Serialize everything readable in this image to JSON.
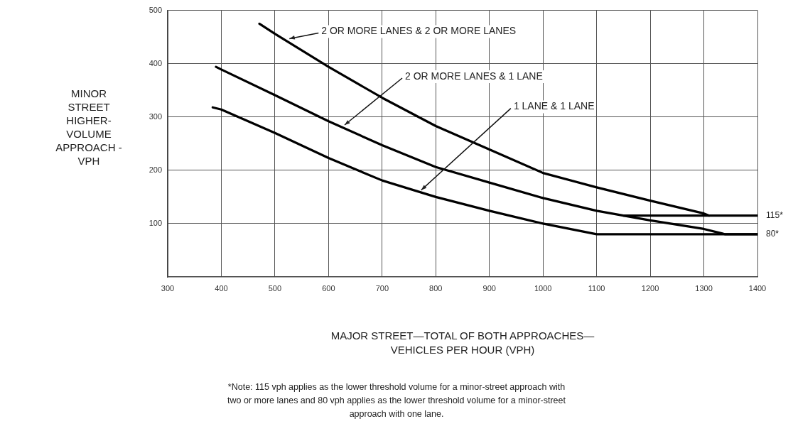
{
  "chart_data": {
    "type": "line",
    "xlabel": "MAJOR STREET—TOTAL OF BOTH APPROACHES—\nVEHICLES PER HOUR (VPH)",
    "ylabel": "MINOR\nSTREET\nHIGHER-\nVOLUME\nAPPROACH -\nVPH",
    "xlim": [
      300,
      1400
    ],
    "xticks": [
      300,
      400,
      500,
      600,
      700,
      800,
      900,
      1000,
      1100,
      1200,
      1300,
      1400
    ],
    "ylim": [
      0,
      500
    ],
    "yticks": [
      100,
      200,
      300,
      400,
      500
    ],
    "grid": true,
    "legend": false,
    "marker": "none",
    "line_style": "solid",
    "series": [
      {
        "color": "#000000",
        "x": [
          471,
          500,
          600,
          700,
          800,
          900,
          1000,
          1100,
          1200,
          1300,
          1310,
          1400
        ],
        "values": [
          475,
          456,
          394,
          336,
          283,
          239,
          195,
          168,
          143,
          119,
          115,
          115
        ]
      },
      {
        "color": "#000000",
        "x": [
          390,
          400,
          500,
          600,
          700,
          800,
          900,
          1000,
          1100,
          1200,
          1300,
          1340,
          1400
        ],
        "values": [
          394,
          389,
          341,
          292,
          247,
          206,
          177,
          148,
          124,
          106,
          90,
          80,
          80
        ]
      },
      {
        "color": "#000000",
        "x": [
          384,
          400,
          500,
          600,
          700,
          800,
          900,
          1000,
          1100,
          1400
        ],
        "values": [
          318,
          314,
          270,
          223,
          181,
          150,
          124,
          100,
          80,
          80
        ]
      },
      {
        "color": "#000000",
        "x": [
          1150,
          1310
        ],
        "values": [
          115,
          115
        ]
      }
    ],
    "annotations": [
      {
        "text": "2 OR MORE LANES & 2 OR MORE LANES",
        "x": 527,
        "y": 447
      },
      {
        "text": "2 OR MORE LANES & 1 LANE",
        "x": 630,
        "y": 285
      },
      {
        "text": "1 LANE & 1 LANE",
        "x": 773,
        "y": 163
      },
      {
        "text": "115*",
        "x": 1400,
        "y": 115
      },
      {
        "text": "80*",
        "x": 1400,
        "y": 80
      },
      "*Note: 115 vph applies as the lower threshold volume for a minor-street approach with two or more lanes and 80 vph applies as the lower threshold volume for a minor-street approach with one lane."
    ]
  }
}
